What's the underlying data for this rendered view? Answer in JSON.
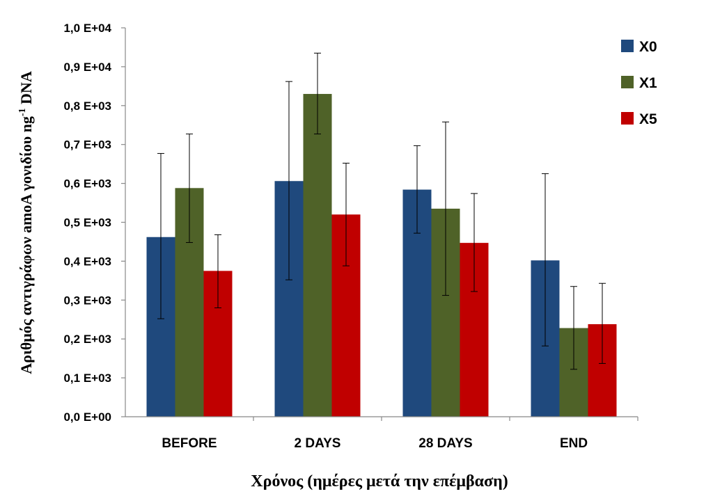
{
  "chart_data": {
    "type": "bar",
    "categories": [
      "BEFORE",
      "2 DAYS",
      "28 DAYS",
      "END"
    ],
    "series": [
      {
        "name": "X0",
        "color": "#1F497D",
        "values": [
          0.462,
          0.606,
          0.584,
          0.402
        ],
        "err_low": [
          0.252,
          0.352,
          0.472,
          0.182
        ],
        "err_high": [
          0.677,
          0.862,
          0.697,
          0.625
        ]
      },
      {
        "name": "X1",
        "color": "#4F6228",
        "values": [
          0.588,
          0.83,
          0.535,
          0.228
        ],
        "err_low": [
          0.448,
          0.727,
          0.312,
          0.122
        ],
        "err_high": [
          0.727,
          0.935,
          0.758,
          0.335
        ]
      },
      {
        "name": "X5",
        "color": "#C00000",
        "values": [
          0.375,
          0.52,
          0.447,
          0.238
        ],
        "err_low": [
          0.28,
          0.388,
          0.322,
          0.137
        ],
        "err_high": [
          0.468,
          0.652,
          0.574,
          0.343
        ]
      }
    ],
    "yticks": [
      "0,0  E+00",
      "0,1 E+03",
      "0,2 E+03",
      "0,3 E+03",
      "0,4 E+03",
      "0,5 E+03",
      "0,6 E+03",
      "0,7 E+03",
      "0,8 E+03",
      "0,9 E+04",
      "1,0  E+04"
    ],
    "ylim": [
      0,
      1.0
    ],
    "xlabel": "Χρόνος (ημέρες μετά την επέμβαση)",
    "ylabel_pre": "Αριθμός αντιγράφων amoA  γονιδίου ng",
    "ylabel_sup": "-1",
    "ylabel_post": " DNA",
    "legend_position": "top-right",
    "grid": false
  }
}
